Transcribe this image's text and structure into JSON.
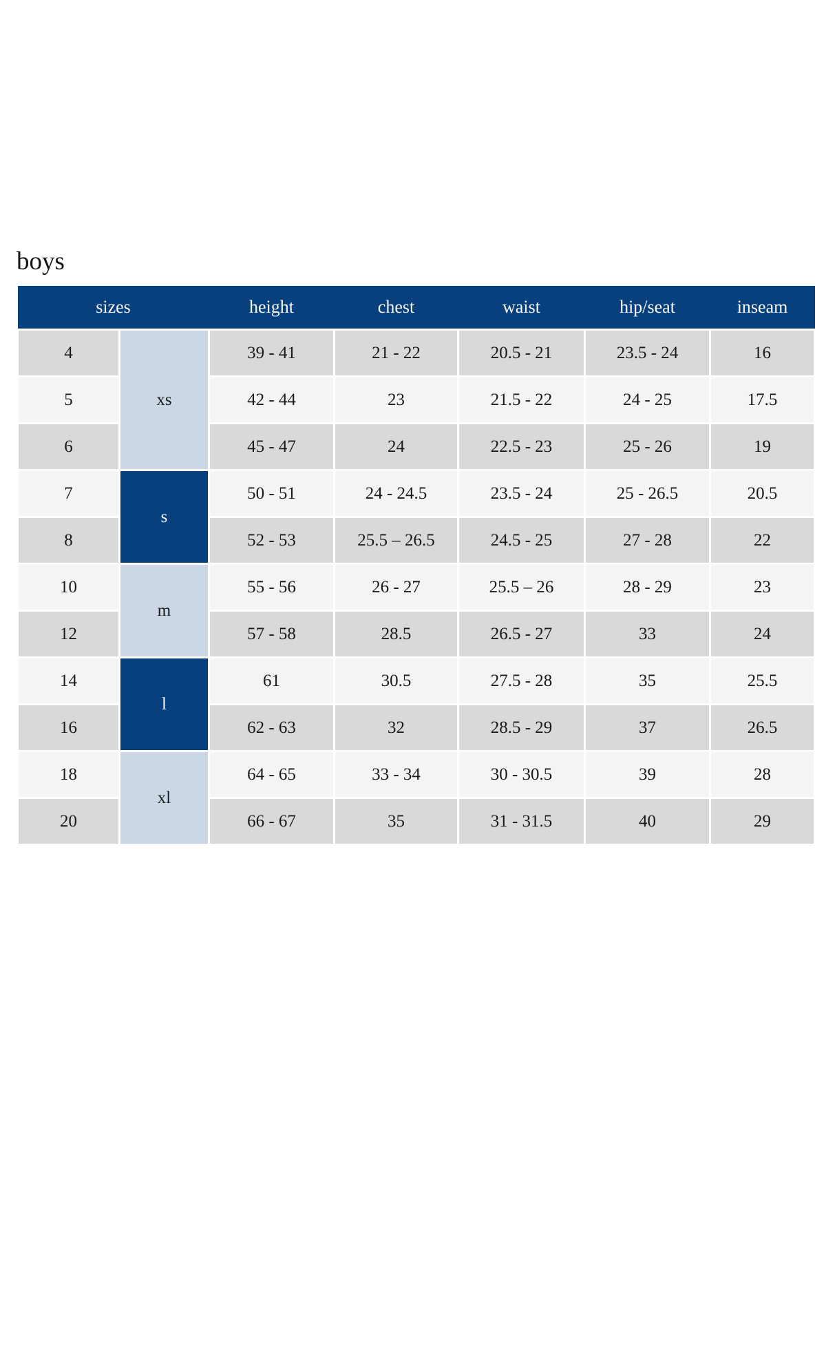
{
  "page": {
    "title": "boys"
  },
  "colors": {
    "header_bg": "#08407e",
    "header_text": "#f7f9fc",
    "group_dark_bg": "#08407e",
    "group_dark_text": "#f7f9fc",
    "group_light_bg": "#cbd7e5",
    "row_dark_bg": "#d9d9d9",
    "row_light_bg": "#f4f4f4",
    "body_text": "#1a1a1a",
    "page_bg": "#ffffff"
  },
  "table": {
    "headers": [
      "sizes",
      "height",
      "chest",
      "waist",
      "hip/seat",
      "inseam"
    ],
    "rows": [
      {
        "size": "4",
        "group": {
          "label": "xs",
          "span": 3,
          "tone": "light"
        },
        "height": "39 - 41",
        "chest": "21 - 22",
        "waist": "20.5 - 21",
        "hip_seat": "23.5 - 24",
        "inseam": "16"
      },
      {
        "size": "5",
        "height": "42 - 44",
        "chest": "23",
        "waist": "21.5 - 22",
        "hip_seat": "24 - 25",
        "inseam": "17.5"
      },
      {
        "size": "6",
        "height": "45 - 47",
        "chest": "24",
        "waist": "22.5 - 23",
        "hip_seat": "25 - 26",
        "inseam": "19"
      },
      {
        "size": "7",
        "group": {
          "label": "s",
          "span": 2,
          "tone": "dark"
        },
        "height": "50 - 51",
        "chest": "24 - 24.5",
        "waist": "23.5 - 24",
        "hip_seat": "25 - 26.5",
        "inseam": "20.5"
      },
      {
        "size": "8",
        "height": "52 - 53",
        "chest": "25.5 – 26.5",
        "waist": "24.5 - 25",
        "hip_seat": "27 - 28",
        "inseam": "22"
      },
      {
        "size": "10",
        "group": {
          "label": "m",
          "span": 2,
          "tone": "light"
        },
        "height": "55 - 56",
        "chest": "26 - 27",
        "waist": "25.5 – 26",
        "hip_seat": "28 - 29",
        "inseam": "23"
      },
      {
        "size": "12",
        "height": "57 - 58",
        "chest": "28.5",
        "waist": "26.5 - 27",
        "hip_seat": "33",
        "inseam": "24"
      },
      {
        "size": "14",
        "group": {
          "label": "l",
          "span": 2,
          "tone": "dark"
        },
        "height": "61",
        "chest": "30.5",
        "waist": "27.5 - 28",
        "hip_seat": "35",
        "inseam": "25.5"
      },
      {
        "size": "16",
        "height": "62 - 63",
        "chest": "32",
        "waist": "28.5 - 29",
        "hip_seat": "37",
        "inseam": "26.5"
      },
      {
        "size": "18",
        "group": {
          "label": "xl",
          "span": 2,
          "tone": "light"
        },
        "height": "64 - 65",
        "chest": "33 - 34",
        "waist": "30 - 30.5",
        "hip_seat": "39",
        "inseam": "28"
      },
      {
        "size": "20",
        "height": "66 - 67",
        "chest": "35",
        "waist": "31 - 31.5",
        "hip_seat": "40",
        "inseam": "29"
      }
    ]
  }
}
